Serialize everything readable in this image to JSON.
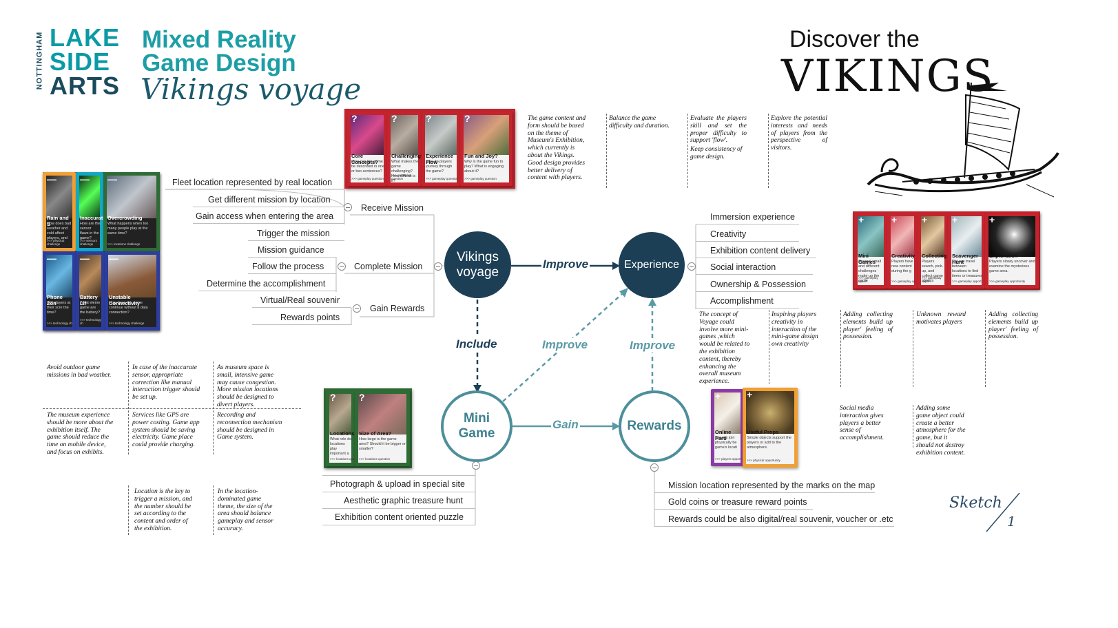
{
  "header": {
    "logo_side": "NOTTINGHAM",
    "logo_line1": "LAKE",
    "logo_line2": "SIDE",
    "logo_line3": "ARTS",
    "title_line1": "Mixed Reality",
    "title_line2": "Game Design",
    "title_script": "Vikings voyage"
  },
  "discover": {
    "line1": "Discover the",
    "line2": "VIKINGS",
    "ship_icon": "viking-ship-drawing"
  },
  "top_cards": [
    {
      "title": "Core Concepts?",
      "desc": "How can the game be described in one or two sentences?",
      "footer": ">>> gameplay question",
      "mark": "?"
    },
    {
      "title": "Challenging?",
      "desc": "What makes the game challenging? How difficult is it?",
      "footer": ">>> gameplay question",
      "mark": "?"
    },
    {
      "title": "Experience Flow",
      "desc": "How do players journey through the game?",
      "footer": ">>> gameplay question",
      "mark": "?"
    },
    {
      "title": "Fun and Joy?",
      "desc": "Why is the game fun to play? What is engaging about it?",
      "footer": ">>> gameplay question",
      "mark": "?"
    }
  ],
  "left_cards": [
    {
      "title": "Rain and S",
      "desc": "How does bad weather and cold affect players, and",
      "footer": ">>> physical challenge",
      "mark": "—"
    },
    {
      "title": "Inaccurate",
      "desc": "How are the sensor flaws in the game?",
      "footer": ">>> sensors challenge",
      "mark": "—"
    },
    {
      "title": "Overcrowding",
      "desc": "What happens when too many people play at the same time?",
      "footer": ">>> locations challenge",
      "mark": "—"
    },
    {
      "title": "Phone Zon",
      "desc": "Will players at their scre the time?",
      "footer": ">>> technology ch",
      "mark": "—"
    },
    {
      "title": "Battery Lif",
      "desc": "What eleme game are the battery?",
      "footer": ">>> technology ch",
      "mark": "—"
    },
    {
      "title": "Unstable Connectivity",
      "desc": "How does the game continue without a data connection?",
      "footer": ">>> technology challenge",
      "mark": "—"
    }
  ],
  "right_cards": [
    {
      "title": "Mini Games",
      "desc": "Several small and different challenges make up the game",
      "footer": ">>> gameplay opport",
      "mark": "+"
    },
    {
      "title": "Creativity",
      "desc": "Players have new content during the g",
      "footer": ">>> gameplay op",
      "mark": "+"
    },
    {
      "title": "Collecting",
      "desc": "Players search, pick-up, and collect game objects",
      "footer": ">>> gameplay opport",
      "mark": "+"
    },
    {
      "title": "Scavenger Hunt",
      "desc": "Players travel between locations to find items or treasures",
      "footer": ">>> gameplay opport",
      "mark": "+"
    },
    {
      "title": "Exploration",
      "desc": "Players slowly uncover and examine the mysterious game area.",
      "footer": ">>> gameplay opportunity",
      "mark": "+"
    }
  ],
  "mini_cards": [
    {
      "title": "Locations?",
      "desc": "What role do locations play important a",
      "footer": ">>> locations que",
      "mark": "?"
    },
    {
      "title": "Size of Area?",
      "desc": "How large is the game area? Should it be bigger or smaller?",
      "footer": ">>> locations question",
      "mark": "?"
    }
  ],
  "reward_cards": [
    {
      "title": "Online Parti",
      "desc": "Players join physically be game's locati",
      "footer": ">>> players opport",
      "mark": "+"
    },
    {
      "title": "Useful Props",
      "desc": "Simple objects support the players or add to the atmosphere.",
      "footer": ">>> physical opportunity",
      "mark": "+"
    }
  ],
  "left_branch": {
    "receive": [
      "Fleet location represented by real location",
      "Get different mission by location",
      "Gain access when entering the area",
      "Trigger the mission"
    ],
    "receive_label": "Receive Mission",
    "complete": [
      "Mission guidance",
      "Follow the process",
      "Determine the accomplishment"
    ],
    "complete_label": "Complete Mission",
    "rewards": [
      "Virtual/Real souvenir",
      "Rewards points"
    ],
    "rewards_label": "Gain Rewards"
  },
  "nodes": {
    "vikings": "Vikings voyage",
    "experience": "Experience",
    "mini": "Mini Game",
    "rewards": "Rewards"
  },
  "edges": {
    "improve_top": "Improve",
    "include": "Include",
    "improve_diag": "Improve",
    "improve_right": "Improve",
    "gain": "Gain"
  },
  "experience_list": [
    "Immersion experience",
    "Creativity",
    "Exhibition content delivery",
    "Social interaction",
    "Ownership & Possession",
    "Accomplishment"
  ],
  "mini_list": [
    "Photograph & upload in special site",
    "Aesthetic graphic treasure hunt",
    "Exhibition content oriented puzzle"
  ],
  "rewards_list": [
    "Mission location represented by the marks on the map",
    "Gold coins or treasure  reward points",
    "Rewards could be also digital/real souvenir, voucher or .etc"
  ],
  "top_notes": [
    "The game content and form should be based on the theme of Museum's Exhibition, which currently is about the Vikings. Good design provides better delivery of content with players.",
    "Balance the game difficulty and duration.",
    "Evaluate the players skill and set the proper difficulty to support 'flow'.",
    "Keep consistency of game design.",
    "Explore the potential interests and needs of players from the perspective of visitors."
  ],
  "left_notes": [
    "Avoid outdoor game missions in bad weather.",
    "In case of the inaccurate sensor, appropriate correction like manual interaction trigger  should be set up.",
    "As museum space is small, intensive game may cause congestion. More mission locations should be designed to divert players.",
    "The museum experience should be more about the exhibition itself. The game should reduce the time on mobile device, and focus on exhibits.",
    "Services like GPS are power costing. Game app system should be saving electricity. Game place could provide charging.",
    "Recording and reconnection mechanism should be designed in Game system.",
    "Location is the key to trigger a mission, and the number  should be set according to the content and order of the exhibition.",
    "In the location-dominated game theme, the size of the area should balance gameplay and sensor accuracy."
  ],
  "right_notes": [
    "The concept of Voyage could involve more mini-games ,which would be related to the exhibition content, thereby enhancing the overall museum experience.",
    "Inspiring players creativity in interaction of the mini-game design own creativity",
    "Adding  collecting elements build up player'  feeling  of possession.",
    "Unknown   reward motivates players",
    "Adding  collecting elements build up player'  feeling  of possession.",
    "Social media interaction gives players a better sense of accomplishment.",
    "Adding some game object could create a better atmosphere for the game, but it should not destroy exhibition content."
  ],
  "sketch": {
    "label": "Sketch",
    "number": "1"
  },
  "colors": {
    "dark_node": "#1c3f56",
    "ring": "#4d8f9b",
    "teal": "#1d9ea6",
    "card_red": "#c4242e",
    "card_green": "#2e6b35",
    "card_blue": "#2d3d9c",
    "card_orange": "#f0a034",
    "card_purple": "#8b3aa6",
    "card_cyan": "#12a8c4"
  }
}
